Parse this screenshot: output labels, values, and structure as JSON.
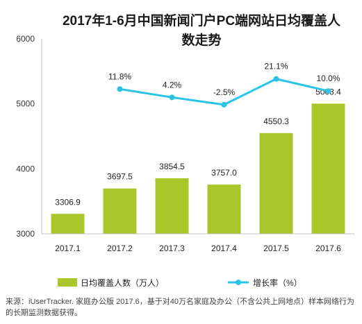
{
  "chart_data": {
    "type": "bar+line",
    "title_line1": "2017年1-6月中国新闻门户PC端网站日均覆盖人",
    "title_line2": "数走势",
    "categories": [
      "2017.1",
      "2017.2",
      "2017.3",
      "2017.4",
      "2017.5",
      "2017.6"
    ],
    "series": [
      {
        "name": "日均覆盖人数（万人）",
        "type": "bar",
        "values": [
          3306.9,
          3697.5,
          3854.5,
          3757.0,
          4550.3,
          5003.4
        ],
        "labels": [
          "3306.9",
          "3697.5",
          "3854.5",
          "3757.0",
          "4550.3",
          "5003.4"
        ],
        "color": "#a9c62a"
      },
      {
        "name": "增长率（%）",
        "type": "line",
        "values": [
          null,
          11.8,
          4.2,
          -2.5,
          21.1,
          10.0
        ],
        "labels": [
          "",
          "11.8%",
          "4.2%",
          "-2.5%",
          "21.1%",
          "10.0%"
        ],
        "color": "#29c4e6"
      }
    ],
    "y_axis": {
      "min": 3000,
      "max": 6000,
      "ticks": [
        3000,
        4000,
        5000,
        6000
      ]
    },
    "legend_position": "bottom",
    "grid": false
  },
  "source_note": "来源：iUserTracker. 家庭办公版 2017.6，基于对40万名家庭及办公（不含公共上网地点）样本网络行为的长期监测数据获得。"
}
